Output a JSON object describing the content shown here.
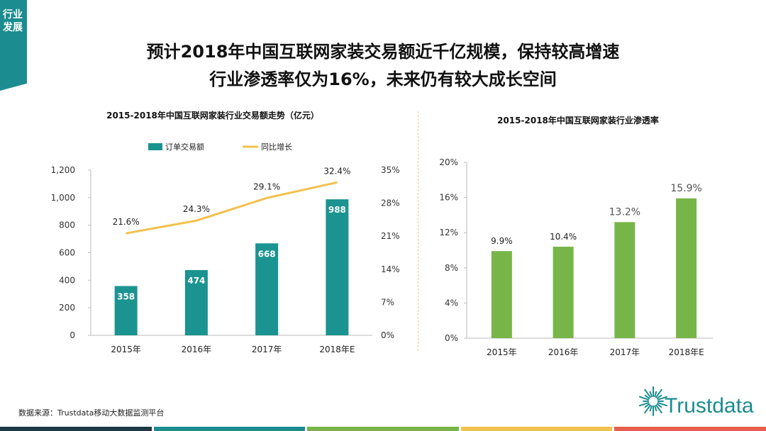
{
  "side_tab": {
    "label": "行业发展"
  },
  "headline": {
    "line1": "预计2018年中国互联网家装交易额近千亿规模，保持较高增速",
    "line2": "行业渗透率仅为16%，未来仍有较大成长空间"
  },
  "source": "数据来源：Trustdata移动大数据监测平台",
  "logo": {
    "text": "Trustdata"
  },
  "colors": {
    "teal": "#1b9391",
    "line": "#f2c14e",
    "green": "#78b548",
    "brand": "#1b8c8f",
    "bottom_bar": [
      "#1d3a44",
      "#1b8c8f",
      "#78b548",
      "#f2c14e",
      "#e8604c"
    ]
  },
  "chart_data": [
    {
      "type": "bar",
      "title": "2015-2018年中国互联网家装行业交易额走势（亿元）",
      "categories": [
        "2015年",
        "2016年",
        "2017年",
        "2018年E"
      ],
      "series": [
        {
          "name": "订单交易额",
          "type": "bar",
          "axis": "left",
          "values": [
            358,
            474,
            668,
            988
          ],
          "labels": [
            "358",
            "474",
            "668",
            "988"
          ]
        },
        {
          "name": "同比增长",
          "type": "line",
          "axis": "right",
          "values": [
            21.6,
            24.3,
            29.1,
            32.4
          ],
          "labels": [
            "21.6%",
            "24.3%",
            "29.1%",
            "32.4%"
          ]
        }
      ],
      "y_left": {
        "ylim": [
          0,
          1200
        ],
        "ticks": [
          0,
          200,
          400,
          600,
          800,
          1000,
          1200
        ],
        "tick_labels": [
          "0",
          "200",
          "400",
          "600",
          "800",
          "1,000",
          "1,200"
        ]
      },
      "y_right": {
        "ylim": [
          0,
          35
        ],
        "ticks": [
          0,
          7,
          14,
          21,
          28,
          35
        ],
        "tick_labels": [
          "0%",
          "7%",
          "14%",
          "21%",
          "28%",
          "35%"
        ]
      },
      "legend": "top"
    },
    {
      "type": "bar",
      "title": "2015-2018年中国互联网家装行业渗透率",
      "categories": [
        "2015年",
        "2016年",
        "2017年",
        "2018年E"
      ],
      "values": [
        9.9,
        10.4,
        13.2,
        15.9
      ],
      "labels": [
        "9.9%",
        "10.4%",
        "13.2%",
        "15.9%"
      ],
      "ylim": [
        0,
        20
      ],
      "ticks": [
        0,
        4,
        8,
        12,
        16,
        20
      ],
      "tick_labels": [
        "0%",
        "4%",
        "8%",
        "12%",
        "16%",
        "20%"
      ]
    }
  ]
}
